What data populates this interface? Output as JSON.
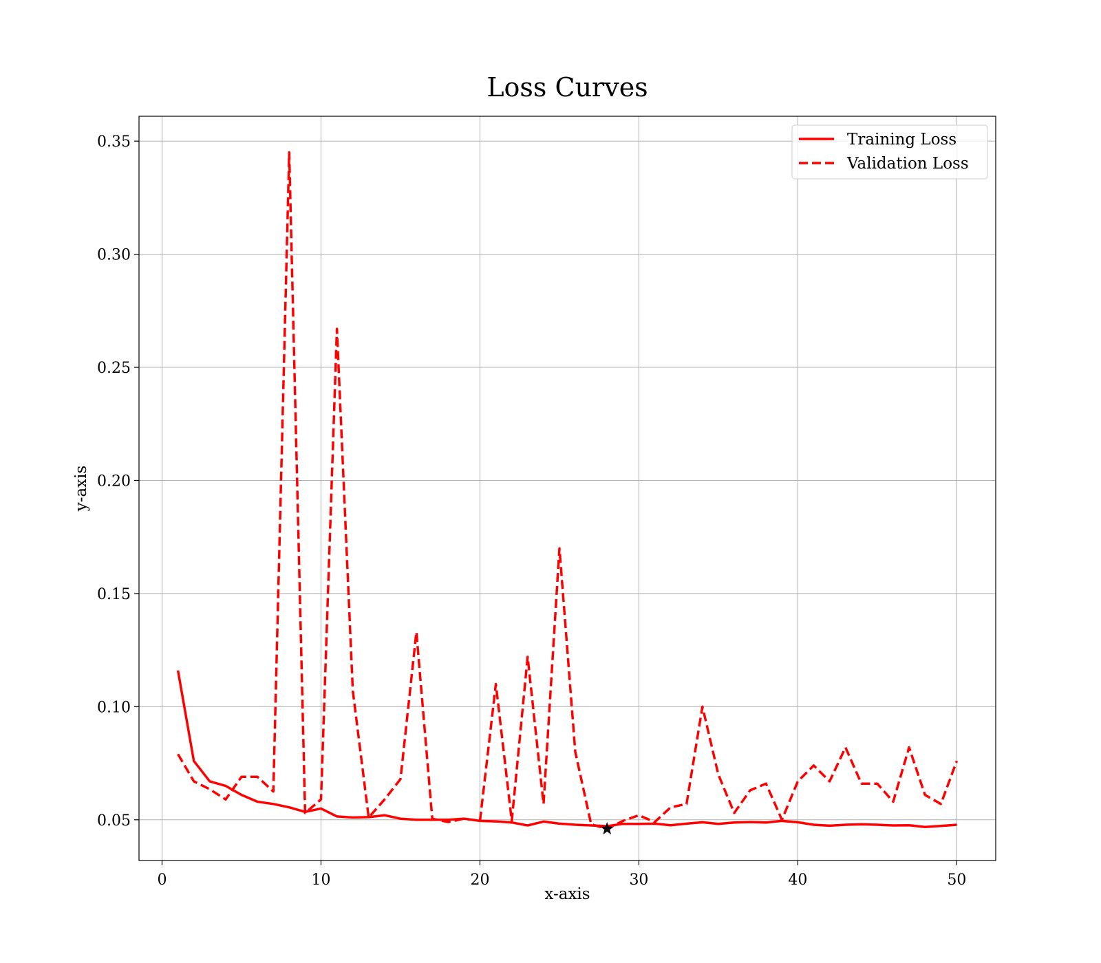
{
  "chart_data": {
    "type": "line",
    "title": "Loss Curves",
    "xlabel": "x-axis",
    "ylabel": "y-axis",
    "xlim": [
      -1.45,
      52.45
    ],
    "ylim": [
      0.032,
      0.361
    ],
    "xticks": [
      0,
      10,
      20,
      30,
      40,
      50
    ],
    "yticks": [
      0.05,
      0.1,
      0.15,
      0.2,
      0.25,
      0.3,
      0.35
    ],
    "xtick_labels": [
      "0",
      "10",
      "20",
      "30",
      "40",
      "50"
    ],
    "ytick_labels": [
      "0.05",
      "0.10",
      "0.15",
      "0.20",
      "0.25",
      "0.30",
      "0.35"
    ],
    "grid": true,
    "legend_position": "top-right",
    "x": [
      1,
      2,
      3,
      4,
      5,
      6,
      7,
      8,
      9,
      10,
      11,
      12,
      13,
      14,
      15,
      16,
      17,
      18,
      19,
      20,
      21,
      22,
      23,
      24,
      25,
      26,
      27,
      28,
      29,
      30,
      31,
      32,
      33,
      34,
      35,
      36,
      37,
      38,
      39,
      40,
      41,
      42,
      43,
      44,
      45,
      46,
      47,
      48,
      49,
      50
    ],
    "series": [
      {
        "name": "Training Loss",
        "color": "#ff0000",
        "style": "solid",
        "values": [
          0.116,
          0.076,
          0.067,
          0.065,
          0.061,
          0.058,
          0.057,
          0.0555,
          0.0535,
          0.055,
          0.0515,
          0.051,
          0.0512,
          0.052,
          0.0505,
          0.05,
          0.05,
          0.05,
          0.0505,
          0.0495,
          0.0493,
          0.0488,
          0.0475,
          0.0492,
          0.0483,
          0.0478,
          0.0475,
          0.0472,
          0.0482,
          0.0482,
          0.0483,
          0.0476,
          0.0483,
          0.0489,
          0.0482,
          0.0488,
          0.049,
          0.0488,
          0.0495,
          0.0489,
          0.0478,
          0.0474,
          0.0478,
          0.048,
          0.0478,
          0.0475,
          0.0476,
          0.0468,
          0.0473,
          0.0478
        ]
      },
      {
        "name": "Validation Loss",
        "color": "#ff0000",
        "style": "dashed",
        "values": [
          0.079,
          0.067,
          0.0635,
          0.059,
          0.069,
          0.069,
          0.0625,
          0.345,
          0.053,
          0.059,
          0.267,
          0.107,
          0.051,
          0.059,
          0.068,
          0.133,
          0.0505,
          0.049,
          0.0505,
          0.0495,
          0.11,
          0.0495,
          0.122,
          0.057,
          0.17,
          0.08,
          0.048,
          0.046,
          0.0495,
          0.052,
          0.049,
          0.0555,
          0.057,
          0.1,
          0.07,
          0.053,
          0.063,
          0.066,
          0.05,
          0.067,
          0.074,
          0.067,
          0.082,
          0.066,
          0.066,
          0.058,
          0.082,
          0.061,
          0.057,
          0.076
        ]
      }
    ],
    "marker": {
      "x": 28,
      "y": 0.046,
      "symbol": "star",
      "color": "#000000"
    }
  }
}
